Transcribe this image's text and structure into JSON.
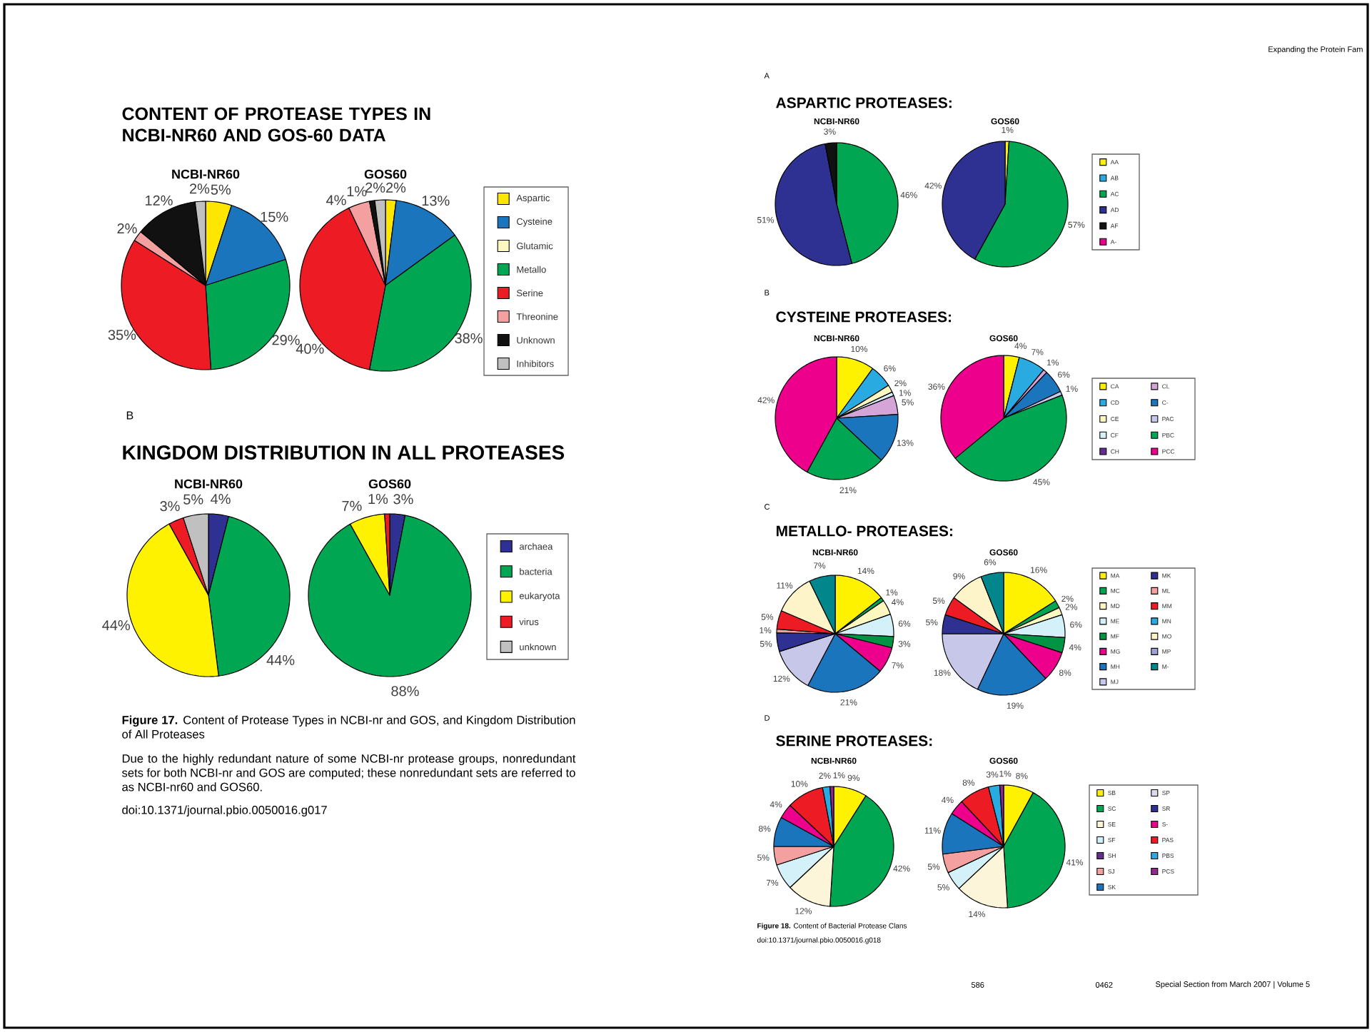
{
  "chart_data": [
    {
      "type": "pie",
      "title": "CONTENT OF PROTEASE TYPES IN NCBI-NR60 AND GOS-60 DATA",
      "subtitle": "NCBI-NR60",
      "legend": "right",
      "categories": [
        "Aspartic",
        "Cysteine",
        "Glutamic",
        "Metallo",
        "Serine",
        "Threonine",
        "Unknown",
        "Inhibitors"
      ],
      "values": [
        5,
        15,
        null,
        29,
        35,
        2,
        12,
        2
      ],
      "value_labels": [
        "5%",
        "15%",
        null,
        "29%",
        "35%",
        "2%",
        "12%",
        "2%"
      ],
      "colors": [
        "#ffe600",
        "#1b75bc",
        "#fff7c0",
        "#00a651",
        "#ed1c24",
        "#f4a0a0",
        "#111111",
        "#c0c0c0"
      ]
    },
    {
      "type": "pie",
      "title": "GOS60",
      "categories": [
        null,
        null,
        null,
        null,
        null,
        null,
        null,
        null
      ],
      "values": [
        2,
        13,
        null,
        38,
        40,
        4,
        1,
        2
      ],
      "value_labels": [
        "2%",
        "13%",
        null,
        "38%",
        "40%",
        "4%",
        "1%",
        "2%"
      ],
      "colors": [
        "#ffe600",
        "#1b75bc",
        "#fff7c0",
        "#00a651",
        "#ed1c24",
        "#f4a0a0",
        "#111111",
        "#c0c0c0"
      ]
    },
    {
      "type": "pie",
      "title": "KINGDOM DISTRIBUTION IN ALL PROTEASES",
      "subtitle": "NCBI-NR60",
      "legend": "right",
      "annotations": [
        "B"
      ],
      "categories": [
        "archaea",
        "bacteria",
        "eukaryota",
        "virus",
        "unknown"
      ],
      "values": [
        4,
        44,
        44,
        3,
        5
      ],
      "value_labels": [
        "4%",
        "44%",
        "44%",
        "3%",
        "5%"
      ],
      "colors": [
        "#2e3192",
        "#00a651",
        "#fff200",
        "#ed1c24",
        "#c0c0c0"
      ]
    },
    {
      "type": "pie",
      "title": "GOS60",
      "annotations": [
        "**Figure 17.** Content of Protease Types in NCBI-nr and GOS, and Kingdom Distribution of All Proteases",
        "Due to the highly redundant nature of some NCBI-nr protease groups, nonredundant sets for both NCBI-nr and GOS are computed; these nonredundant sets are referred to as NCBI-nr60 and GOS60.",
        "doi:10.1371/journal.pbio.0050016.g017"
      ],
      "categories": [
        null,
        null,
        null,
        null,
        null
      ],
      "values": [
        3,
        88,
        7,
        1,
        null
      ],
      "value_labels": [
        "3%",
        "88%",
        "7%",
        "1%",
        null
      ],
      "colors": [
        "#2e3192",
        "#00a651",
        "#fff200",
        "#ed1c24",
        "#c0c0c0"
      ]
    },
    {
      "type": "pie",
      "title": "ASPARTIC PROTEASES:",
      "subtitle": "NCBI-NR60",
      "legend": "right",
      "annotations": [
        "A",
        "Expanding the Protein Fam"
      ],
      "categories": [
        "AA",
        "AB",
        "AC",
        "AD",
        "AF",
        "A-"
      ],
      "values": [
        null,
        null,
        46,
        51,
        3,
        null
      ],
      "value_labels": [
        null,
        null,
        "46%",
        "51%",
        "3%",
        null
      ],
      "colors": [
        "#fff200",
        "#29abe2",
        "#00a651",
        "#2e3192",
        "#111111",
        "#ec008c"
      ]
    },
    {
      "type": "pie",
      "title": "GOS60",
      "categories": [
        null,
        null,
        null,
        null,
        null,
        null
      ],
      "values": [
        1,
        null,
        57,
        42,
        null,
        null
      ],
      "value_labels": [
        "1%",
        null,
        "57%",
        "42%",
        null,
        null
      ],
      "colors": [
        "#fff200",
        "#29abe2",
        "#00a651",
        "#2e3192",
        "#111111",
        "#ec008c"
      ]
    },
    {
      "type": "pie",
      "title": "CYSTEINE PROTEASES:",
      "subtitle": "NCBI-NR60",
      "legend": "right",
      "annotations": [
        "B"
      ],
      "categories": [
        "CA",
        "CD",
        "CE",
        "CF",
        "CH",
        "CL",
        "C-",
        "PAC",
        "PBC",
        "PCC"
      ],
      "values": [
        10,
        6,
        2,
        1,
        null,
        5,
        13,
        null,
        21,
        42
      ],
      "value_labels": [
        "10%",
        "6%",
        "2%",
        "1%",
        null,
        "5%",
        "13%",
        null,
        "21%",
        "42%"
      ],
      "colors": [
        "#fff200",
        "#29abe2",
        "#fff7c0",
        "#d4f1f9",
        "#662d91",
        "#d4a5d6",
        "#1b75bc",
        "#c7c7ea",
        "#00a651",
        "#ec008c"
      ]
    },
    {
      "type": "pie",
      "title": "GOS60",
      "categories": [
        null,
        null,
        null,
        null,
        null,
        null,
        null,
        null,
        null,
        null
      ],
      "values": [
        4,
        7,
        null,
        null,
        null,
        1,
        6,
        1,
        45,
        36
      ],
      "value_labels": [
        "4%",
        "7%",
        null,
        null,
        null,
        "1%",
        "6%",
        "1%",
        "45%",
        "36%"
      ],
      "colors": [
        "#fff200",
        "#29abe2",
        "#fff7c0",
        "#d4f1f9",
        "#662d91",
        "#d4a5d6",
        "#1b75bc",
        "#c7c7ea",
        "#00a651",
        "#ec008c"
      ]
    },
    {
      "type": "pie",
      "title": "METALLO- PROTEASES:",
      "subtitle": "NCBI-NR60",
      "legend": "right",
      "annotations": [
        "C"
      ],
      "categories": [
        "MA",
        "MC",
        "MD",
        "ME",
        "MF",
        "MG",
        "MH",
        "MJ",
        "MK",
        "ML",
        "MM",
        "MN",
        "MO",
        "MP",
        "M-"
      ],
      "values": [
        14,
        1,
        4,
        6,
        3,
        7,
        21,
        12,
        5,
        1,
        5,
        null,
        11,
        null,
        7
      ],
      "value_labels": [
        "14%",
        "1%",
        "4%",
        "6%",
        "3%",
        "7%",
        "21%",
        "12%",
        "5%",
        "1%",
        "5%",
        null,
        "11%",
        null,
        "7%"
      ],
      "colors": [
        "#fff200",
        "#00a651",
        "#fff7c0",
        "#d4f1f9",
        "#009444",
        "#ec008c",
        "#1b75bc",
        "#c7c7ea",
        "#2e3192",
        "#f4a0a0",
        "#ed1c24",
        "#29abe2",
        "#fdf5c9",
        "#a0a0d8",
        "#00868b"
      ]
    },
    {
      "type": "pie",
      "title": "GOS60",
      "categories": [
        null,
        null,
        null,
        null,
        null,
        null,
        null,
        null,
        null,
        null,
        null,
        null,
        null,
        null,
        null
      ],
      "values": [
        16,
        2,
        2,
        6,
        4,
        8,
        19,
        18,
        5,
        null,
        5,
        null,
        9,
        null,
        6
      ],
      "value_labels": [
        "16%",
        "2%",
        "2%",
        "6%",
        "4%",
        "8%",
        "19%",
        "18%",
        "5%",
        null,
        "5%",
        null,
        "9%",
        null,
        "6%"
      ],
      "colors": [
        "#fff200",
        "#00a651",
        "#fff7c0",
        "#d4f1f9",
        "#009444",
        "#ec008c",
        "#1b75bc",
        "#c7c7ea",
        "#2e3192",
        "#f4a0a0",
        "#ed1c24",
        "#29abe2",
        "#fdf5c9",
        "#a0a0d8",
        "#00868b"
      ]
    },
    {
      "type": "pie",
      "title": "SERINE PROTEASES:",
      "subtitle": "NCBI-NR60",
      "legend": "right",
      "annotations": [
        "D"
      ],
      "categories": [
        "SB",
        "SC",
        "SE",
        "SF",
        "SH",
        "SJ",
        "SK",
        "SP",
        "SR",
        "S-",
        "PAS",
        "PBS",
        "PCS"
      ],
      "values": [
        9,
        42,
        12,
        7,
        null,
        5,
        8,
        null,
        null,
        4,
        10,
        2,
        1
      ],
      "value_labels": [
        "9%",
        "42%",
        "12%",
        "7%",
        null,
        "5%",
        "8%",
        null,
        null,
        "4%",
        "10%",
        "2%",
        "1%"
      ],
      "colors": [
        "#fff200",
        "#00a651",
        "#fdf5d9",
        "#d4f1f9",
        "#662d91",
        "#f4a0a0",
        "#1b75bc",
        "#d9d9f0",
        "#2e3192",
        "#ec008c",
        "#ed1c24",
        "#29abe2",
        "#92278f"
      ]
    },
    {
      "type": "pie",
      "title": "GOS60",
      "annotations": [
        "**Figure 18.** Content of Bacterial Protease Clans",
        "doi:10.1371/journal.pbio.0050016.g018",
        "586",
        "0462",
        "Special Section from March 2007 | Volume 5"
      ],
      "categories": [
        null,
        null,
        null,
        null,
        null,
        null,
        null,
        null,
        null,
        null,
        null,
        null,
        null
      ],
      "values": [
        8,
        41,
        14,
        5,
        null,
        5,
        11,
        null,
        null,
        4,
        8,
        3,
        1
      ],
      "value_labels": [
        "8%",
        "41%",
        "14%",
        "5%",
        null,
        "5%",
        "11%",
        null,
        null,
        "4%",
        "8%",
        "3%",
        "1%"
      ],
      "colors": [
        "#fff200",
        "#00a651",
        "#fdf5d9",
        "#d4f1f9",
        "#662d91",
        "#f4a0a0",
        "#1b75bc",
        "#d9d9f0",
        "#2e3192",
        "#ec008c",
        "#ed1c24",
        "#29abe2",
        "#92278f"
      ]
    }
  ]
}
